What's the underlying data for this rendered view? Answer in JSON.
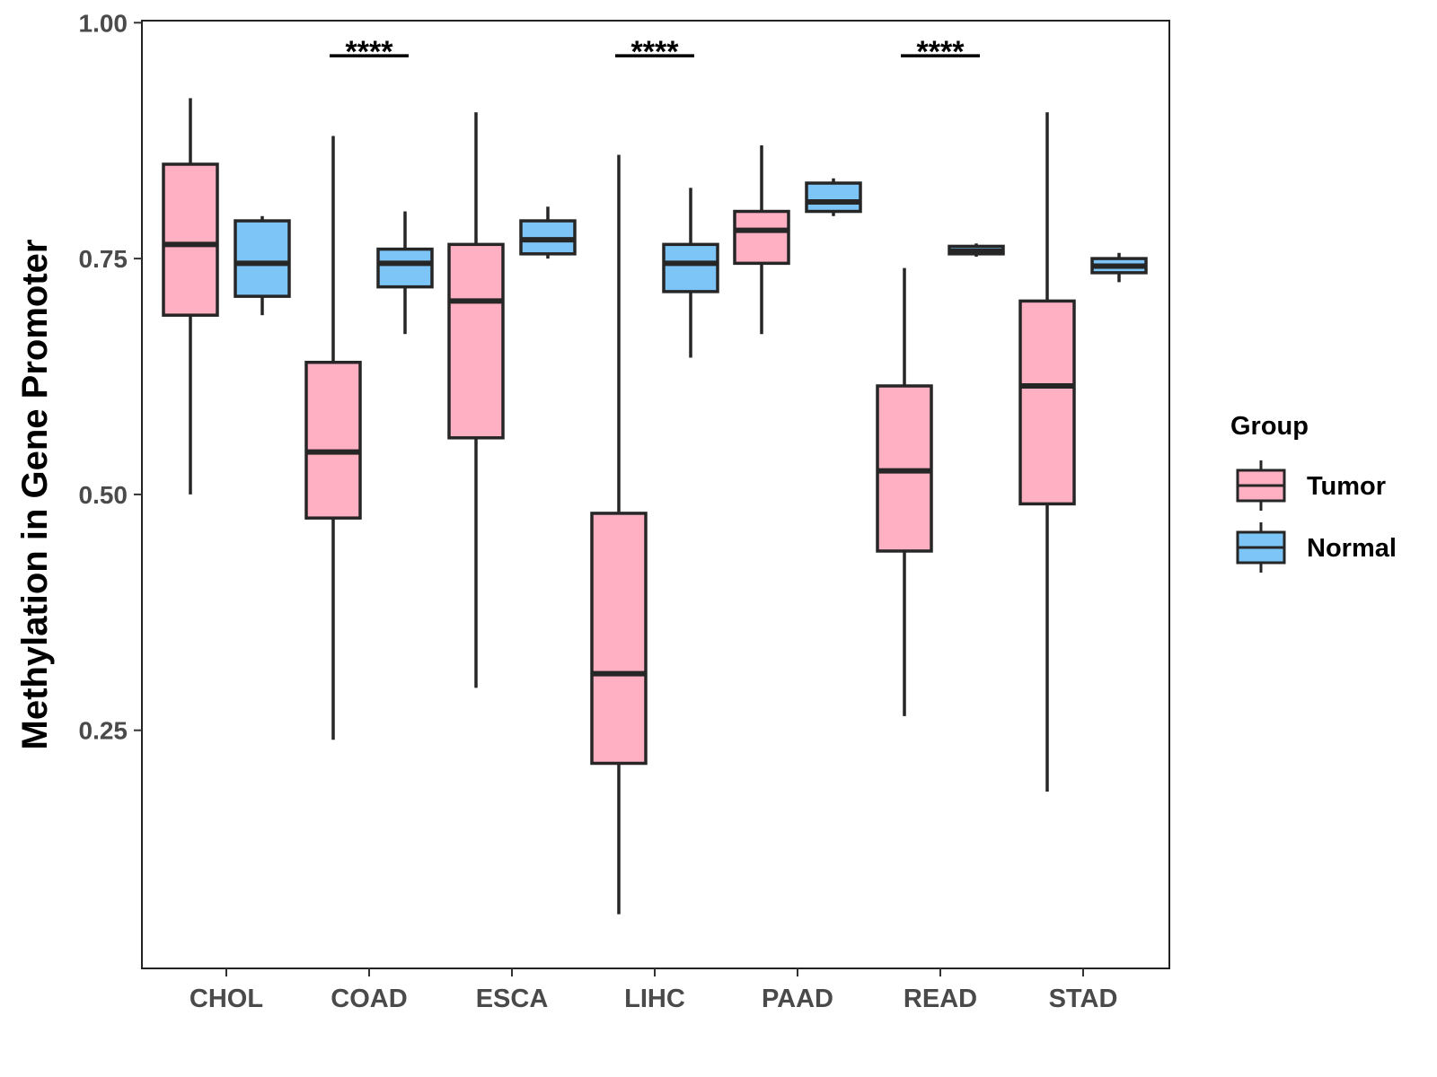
{
  "chart_data": {
    "type": "boxplot",
    "title": "",
    "xlabel": "",
    "ylabel": "Methylation in Gene Promoter",
    "ylim": [
      0.0,
      1.015
    ],
    "yticks": [
      0.25,
      0.5,
      0.75,
      1.0
    ],
    "ytick_labels": [
      "0.25",
      "0.50",
      "0.75",
      "1.00"
    ],
    "grid": false,
    "categories": [
      "CHOL",
      "COAD",
      "ESCA",
      "LIHC",
      "PAAD",
      "READ",
      "STAD"
    ],
    "legend": {
      "title": "Group",
      "position": "right",
      "entries": [
        {
          "name": "Tumor",
          "color": "#FFB0C3"
        },
        {
          "name": "Normal",
          "color": "#7DC4F7"
        }
      ]
    },
    "series": [
      {
        "name": "Tumor",
        "color": "#FFB0C3",
        "boxes": [
          {
            "category": "CHOL",
            "min": 0.5,
            "q1": 0.69,
            "median": 0.765,
            "q3": 0.85,
            "max": 0.92
          },
          {
            "category": "COAD",
            "min": 0.24,
            "q1": 0.475,
            "median": 0.545,
            "q3": 0.64,
            "max": 0.88
          },
          {
            "category": "ESCA",
            "min": 0.295,
            "q1": 0.56,
            "median": 0.705,
            "q3": 0.765,
            "max": 0.905
          },
          {
            "category": "LIHC",
            "min": 0.055,
            "q1": 0.215,
            "median": 0.31,
            "q3": 0.48,
            "max": 0.86
          },
          {
            "category": "PAAD",
            "min": 0.67,
            "q1": 0.745,
            "median": 0.78,
            "q3": 0.8,
            "max": 0.87
          },
          {
            "category": "READ",
            "min": 0.265,
            "q1": 0.44,
            "median": 0.525,
            "q3": 0.615,
            "max": 0.74
          },
          {
            "category": "STAD",
            "min": 0.185,
            "q1": 0.49,
            "median": 0.615,
            "q3": 0.705,
            "max": 0.905
          }
        ]
      },
      {
        "name": "Normal",
        "color": "#7DC4F7",
        "boxes": [
          {
            "category": "CHOL",
            "min": 0.69,
            "q1": 0.71,
            "median": 0.745,
            "q3": 0.79,
            "max": 0.795
          },
          {
            "category": "COAD",
            "min": 0.67,
            "q1": 0.72,
            "median": 0.745,
            "q3": 0.76,
            "max": 0.8
          },
          {
            "category": "ESCA",
            "min": 0.75,
            "q1": 0.755,
            "median": 0.77,
            "q3": 0.79,
            "max": 0.805
          },
          {
            "category": "LIHC",
            "min": 0.645,
            "q1": 0.715,
            "median": 0.745,
            "q3": 0.765,
            "max": 0.825
          },
          {
            "category": "PAAD",
            "min": 0.795,
            "q1": 0.8,
            "median": 0.81,
            "q3": 0.83,
            "max": 0.835
          },
          {
            "category": "READ",
            "min": 0.752,
            "q1": 0.755,
            "median": 0.758,
            "q3": 0.763,
            "max": 0.766
          },
          {
            "category": "STAD",
            "min": 0.725,
            "q1": 0.735,
            "median": 0.742,
            "q3": 0.75,
            "max": 0.756
          }
        ]
      }
    ],
    "annotations": [
      {
        "category": "COAD",
        "text": "****",
        "y": 0.965
      },
      {
        "category": "LIHC",
        "text": "****",
        "y": 0.965
      },
      {
        "category": "READ",
        "text": "****",
        "y": 0.965
      }
    ]
  }
}
